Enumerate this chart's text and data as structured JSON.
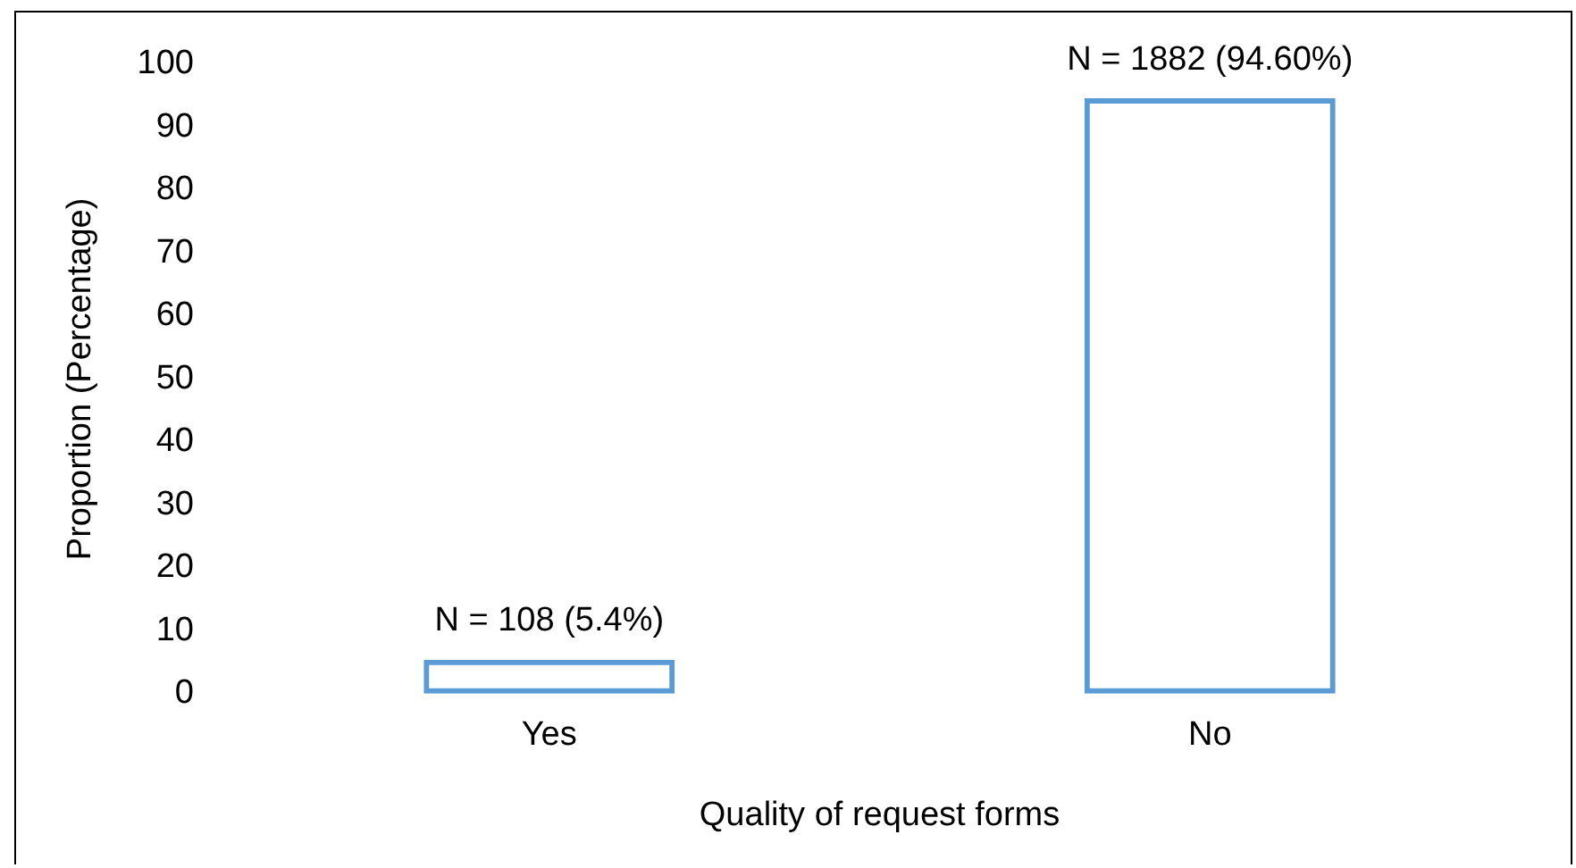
{
  "chart_data": {
    "type": "bar",
    "xlabel": "Quality of request forms",
    "ylabel": "Proportion (Percentage)",
    "categories": [
      "Yes",
      "No"
    ],
    "values": [
      5.4,
      94.6
    ],
    "value_labels": [
      "N = 108 (5.4%)",
      "N = 1882 (94.60%)"
    ],
    "color": "#5b9bd5",
    "ylim": [
      0,
      100
    ],
    "yticks": [
      0,
      10,
      20,
      30,
      40,
      50,
      60,
      70,
      80,
      90,
      100
    ],
    "grid": false,
    "legend": false
  }
}
